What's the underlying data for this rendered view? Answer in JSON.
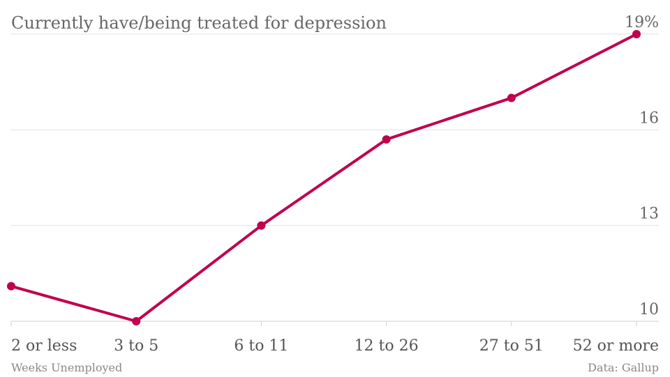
{
  "chart_data": {
    "type": "line",
    "title": "Currently have/being treated for depression",
    "xlabel": "Weeks Unemployed",
    "source": "Data: Gallup",
    "categories": [
      "2 or less",
      "3 to 5",
      "6 to 11",
      "12 to 26",
      "27 to 51",
      "52 or more"
    ],
    "series": [
      {
        "values": [
          11.1,
          10.0,
          13.0,
          15.7,
          17.0,
          19.0
        ]
      }
    ],
    "yticks": [
      10,
      13,
      16,
      19
    ],
    "ytick_labels": [
      "10",
      "13",
      "16",
      "19%"
    ],
    "ylim": [
      10,
      19
    ],
    "grid": true,
    "y_axis_side": "right",
    "line_color": "#c0004e"
  }
}
